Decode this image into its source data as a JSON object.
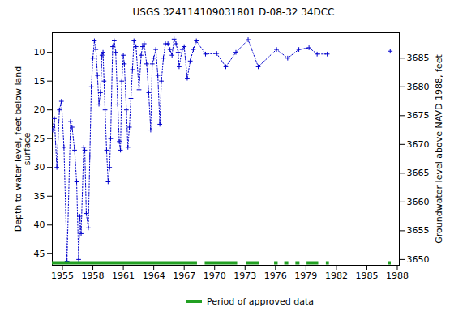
{
  "chart_data": {
    "type": "line",
    "title": "USGS 324114109031801 D-08-32 34DCC",
    "x": [
      1954.04,
      1954.2,
      1954.45,
      1954.7,
      1954.9,
      1955.15,
      1955.45,
      1955.8,
      1955.95,
      1956.2,
      1956.4,
      1956.6,
      1956.72,
      1956.84,
      1957.1,
      1957.2,
      1957.35,
      1957.55,
      1957.7,
      1957.85,
      1958.0,
      1958.15,
      1958.3,
      1958.45,
      1958.6,
      1958.75,
      1958.9,
      1959.0,
      1959.1,
      1959.2,
      1959.35,
      1959.5,
      1959.65,
      1959.75,
      1959.95,
      1960.1,
      1960.25,
      1960.45,
      1960.6,
      1960.72,
      1960.85,
      1961.0,
      1961.1,
      1961.3,
      1961.45,
      1961.6,
      1961.75,
      1961.9,
      1962.05,
      1962.25,
      1962.55,
      1962.75,
      1962.9,
      1963.05,
      1963.3,
      1963.5,
      1963.7,
      1963.85,
      1964.0,
      1964.2,
      1964.4,
      1964.6,
      1964.75,
      1964.95,
      1965.15,
      1965.4,
      1965.6,
      1965.8,
      1966.0,
      1966.2,
      1966.4,
      1966.5,
      1966.8,
      1967.0,
      1967.3,
      1967.6,
      1967.9,
      1968.2,
      1969.1,
      1970.2,
      1971.1,
      1972.1,
      1973.3,
      1974.3,
      1976.1,
      1977.2,
      1978.3,
      1979.3,
      1980.1,
      1981.1,
      1981.1,
      1987.3
    ],
    "values": [
      23.5,
      21.5,
      30,
      20,
      18.5,
      26.5,
      46.3,
      22,
      23,
      27,
      32.5,
      46,
      38.5,
      41.5,
      26.5,
      27,
      38,
      40.5,
      28,
      16,
      11,
      8,
      9.5,
      14,
      19,
      17,
      10.5,
      10,
      15,
      20,
      27,
      32.5,
      30,
      25,
      9,
      8,
      10,
      19,
      25.5,
      27,
      15,
      10.5,
      12,
      20,
      26.5,
      23,
      18,
      13,
      8,
      9,
      16.5,
      10.5,
      9,
      8.5,
      12,
      17,
      23.5,
      12,
      11,
      9.5,
      14,
      22.5,
      15,
      11,
      8.5,
      8.5,
      9.5,
      10.5,
      7.7,
      8.5,
      10,
      12.5,
      9.5,
      9,
      14.5,
      11.5,
      9.5,
      8,
      10.3,
      10.2,
      12.5,
      10,
      7.8,
      12.5,
      9.5,
      11,
      9.5,
      9.2,
      10.3,
      10.3,
      null,
      9.8
    ],
    "color": "#0000cc",
    "marker": "plus",
    "line_style": "dotted",
    "xlim": [
      1954.0,
      1988.2
    ],
    "xticks": [
      1955,
      1958,
      1961,
      1964,
      1967,
      1970,
      1973,
      1976,
      1979,
      1982,
      1985,
      1988
    ],
    "ylim": [
      47,
      6.6
    ],
    "yticks": [
      10,
      15,
      20,
      25,
      30,
      35,
      40,
      45
    ],
    "y_label": "Depth to water level, feet below land\nsurface",
    "y2lim": [
      3649,
      3689.4
    ],
    "y2ticks": [
      3650,
      3655,
      3660,
      3665,
      3670,
      3675,
      3680,
      3685
    ],
    "y2_label": "Groundwater level above NAVD 1988, feet",
    "approved_periods": {
      "name": "Period of approved data",
      "color": "#22a022",
      "ranges": [
        [
          1954.0,
          1968.3
        ],
        [
          1969.06,
          1972.26
        ],
        [
          1973.14,
          1974.4
        ],
        [
          1975.9,
          1976.25
        ],
        [
          1976.9,
          1977.3
        ],
        [
          1978.0,
          1978.4
        ],
        [
          1979.1,
          1980.25
        ],
        [
          1981.0,
          1981.3
        ],
        [
          1987.1,
          1987.4
        ]
      ]
    },
    "legend": "bottom",
    "grid": false
  }
}
